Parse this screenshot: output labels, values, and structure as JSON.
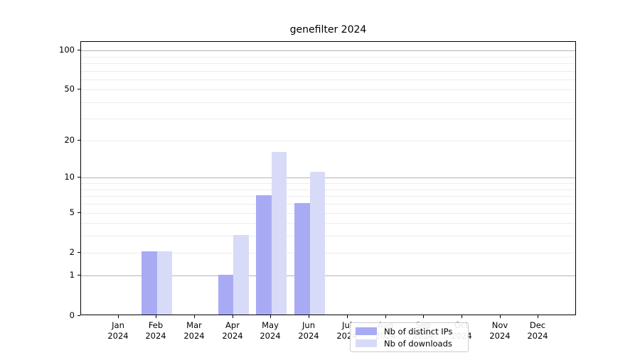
{
  "title": "genefilter 2024",
  "chart_data": {
    "type": "bar",
    "title": "genefilter 2024",
    "categories": [
      "Jan",
      "Feb",
      "Mar",
      "Apr",
      "May",
      "Jun",
      "Jul",
      "Aug",
      "Sep",
      "Oct",
      "Nov",
      "Dec"
    ],
    "category_year": "2024",
    "series": [
      {
        "name": "Nb of distinct IPs",
        "color": "#a8abf4",
        "values": [
          0,
          2,
          0,
          1,
          7,
          6,
          0,
          0,
          0,
          0,
          0,
          0
        ]
      },
      {
        "name": "Nb of downloads",
        "color": "#d8dbf7",
        "values": [
          0,
          2,
          0,
          3,
          16,
          11,
          0,
          0,
          0,
          0,
          0,
          0
        ]
      }
    ],
    "xlabel": "",
    "ylabel": "",
    "yscale": "log1p",
    "ylim": [
      0,
      117
    ],
    "yticks": [
      100,
      50,
      20,
      10,
      5,
      2,
      1,
      0
    ],
    "gridlines_major": [
      1,
      10,
      100
    ],
    "gridlines_minor": [
      2,
      3,
      4,
      5,
      6,
      7,
      8,
      9,
      20,
      30,
      40,
      50,
      60,
      70,
      80,
      90
    ],
    "grid": "on",
    "legend_position": "bottom-center-inside",
    "colors": {
      "major_grid": "#b3b3b3",
      "minor_grid": "#ececec",
      "axis": "#000000",
      "background": "#ffffff"
    }
  }
}
